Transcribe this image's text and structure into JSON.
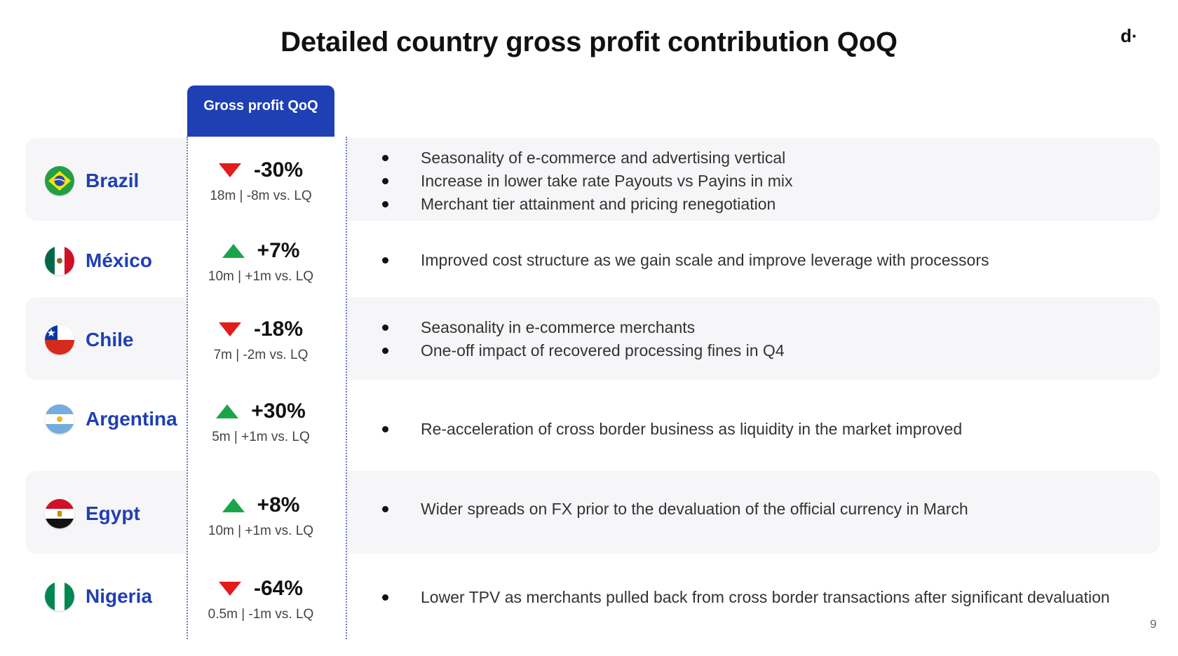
{
  "title": "Detailed country gross profit contribution QoQ",
  "logo": "d·",
  "page_number": "9",
  "column_header": "Gross profit QoQ",
  "colors": {
    "accent": "#1f3fb5",
    "down": "#e21b1b",
    "up": "#1aa54a",
    "row_bg": "#f6f6f8"
  },
  "rows": [
    {
      "country": "Brazil",
      "flag_icon": "brazil-flag-icon",
      "direction": "down",
      "pct": "-30%",
      "detail": "18m | -8m vs. LQ",
      "bullets": [
        "Seasonality of e-commerce and advertising vertical",
        "Increase in lower take rate Payouts vs Payins in mix",
        "Merchant tier attainment and pricing renegotiation"
      ]
    },
    {
      "country": "México",
      "flag_icon": "mexico-flag-icon",
      "direction": "up",
      "pct": "+7%",
      "detail": "10m | +1m vs. LQ",
      "bullets": [
        "Improved cost structure as we gain scale and improve leverage with processors"
      ]
    },
    {
      "country": "Chile",
      "flag_icon": "chile-flag-icon",
      "direction": "down",
      "pct": "-18%",
      "detail": "7m | -2m vs. LQ",
      "bullets": [
        "Seasonality in e-commerce merchants",
        "One-off impact of recovered processing fines in Q4"
      ]
    },
    {
      "country": "Argentina",
      "flag_icon": "argentina-flag-icon",
      "direction": "up",
      "pct": "+30%",
      "detail": "5m | +1m vs. LQ",
      "bullets": [
        "Re-acceleration of cross border business as liquidity in the market improved"
      ]
    },
    {
      "country": "Egypt",
      "flag_icon": "egypt-flag-icon",
      "direction": "up",
      "pct": "+8%",
      "detail": "10m | +1m vs. LQ",
      "bullets": [
        "Wider spreads on FX prior to the devaluation of the official currency in March"
      ]
    },
    {
      "country": "Nigeria",
      "flag_icon": "nigeria-flag-icon",
      "direction": "down",
      "pct": "-64%",
      "detail": "0.5m | -1m vs. LQ",
      "bullets": [
        "Lower TPV as merchants pulled back from cross border transactions after significant devaluation"
      ]
    }
  ]
}
